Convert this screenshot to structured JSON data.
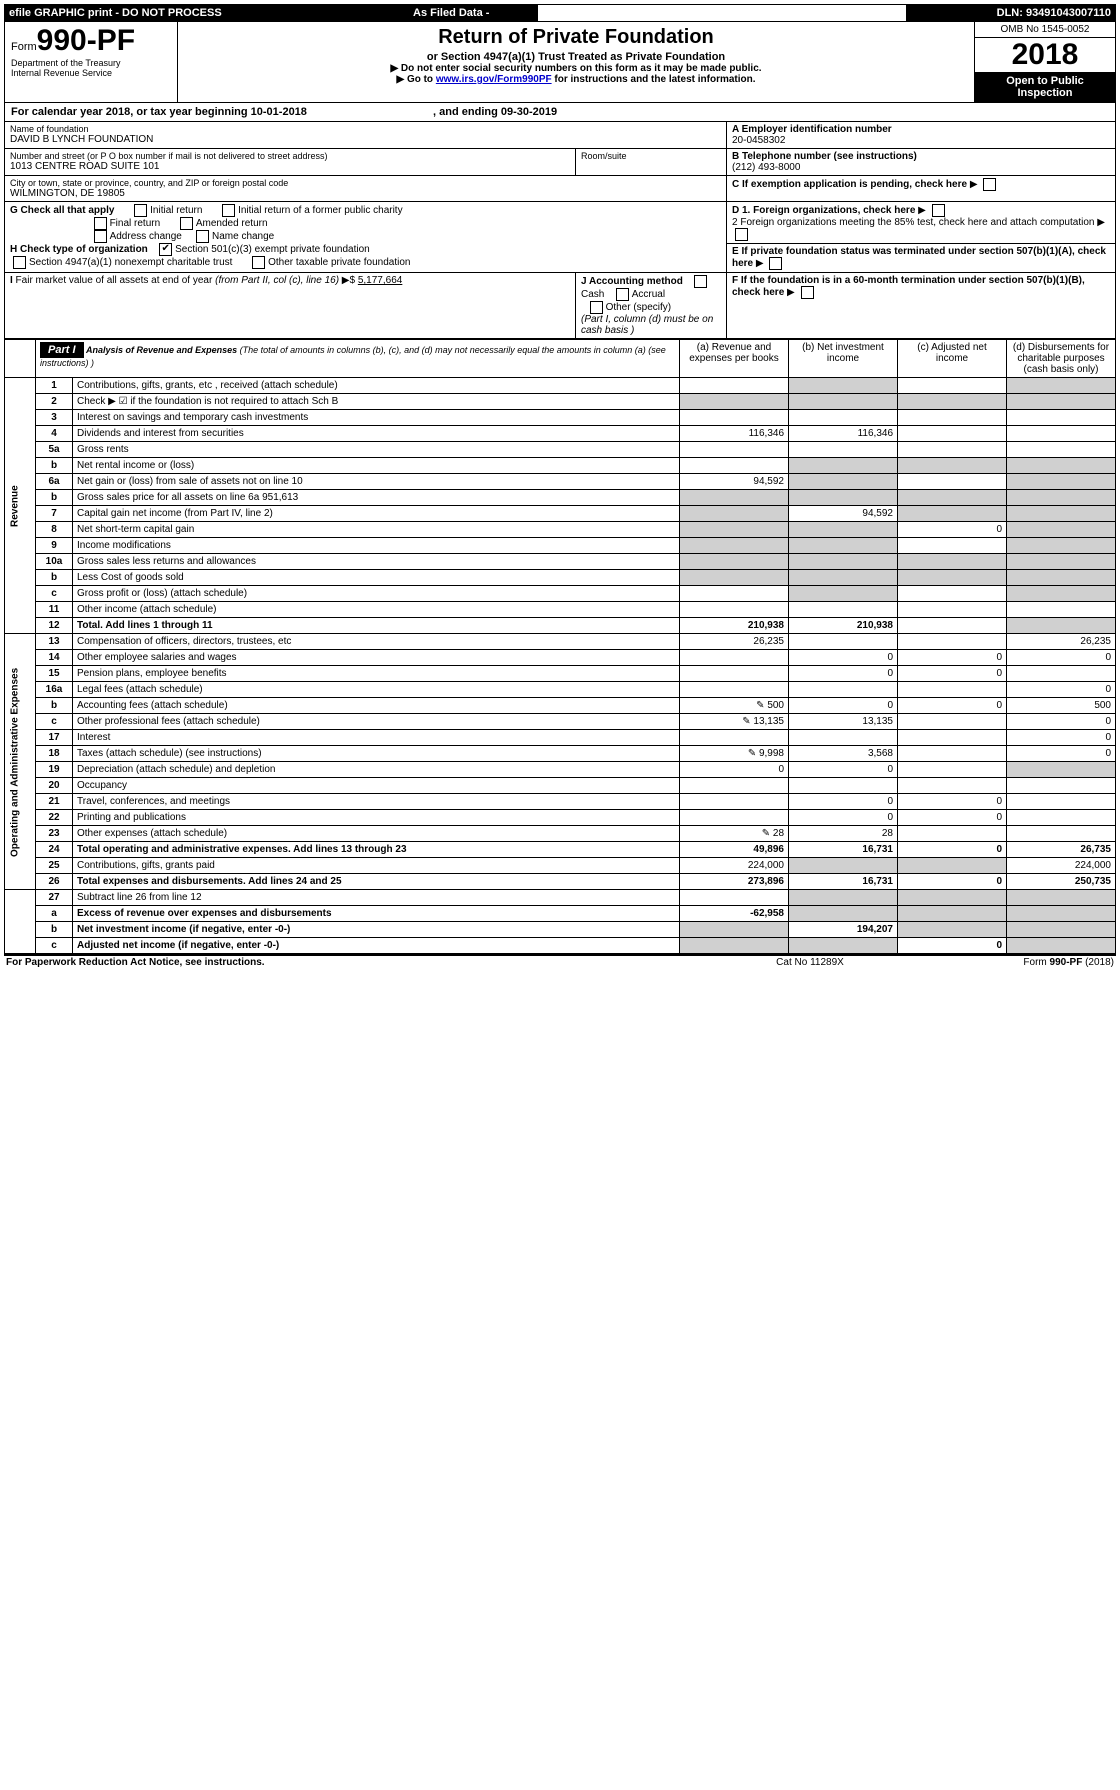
{
  "topbar": {
    "efile": "efile GRAPHIC print - DO NOT PROCESS",
    "asFiled": "As Filed Data -",
    "dln": "DLN: 93491043007110"
  },
  "header": {
    "formPrefix": "Form",
    "formNo": "990-PF",
    "dept1": "Department of the Treasury",
    "dept2": "Internal Revenue Service",
    "title": "Return of Private Foundation",
    "subtitle": "or Section 4947(a)(1) Trust Treated as Private Foundation",
    "note1": "▶ Do not enter social security numbers on this form as it may be made public.",
    "note2a": "▶ Go to ",
    "note2link": "www.irs.gov/Form990PF",
    "note2b": " for instructions and the latest information.",
    "omb": "OMB No 1545-0052",
    "year": "2018",
    "inspect": "Open to Public Inspection"
  },
  "calLine": {
    "a": "For calendar year 2018, or tax year beginning 10-01-2018",
    "b": ", and ending 09-30-2019"
  },
  "info": {
    "nameLabel": "Name of foundation",
    "name": "DAVID B LYNCH FOUNDATION",
    "einLabel": "A Employer identification number",
    "ein": "20-0458302",
    "addrLabel": "Number and street (or P O  box number if mail is not delivered to street address)",
    "addr": "1013 CENTRE ROAD SUITE 101",
    "roomLabel": "Room/suite",
    "telLabel": "B Telephone number (see instructions)",
    "tel": "(212) 493-8000",
    "cityLabel": "City or town, state or province, country, and ZIP or foreign postal code",
    "city": "WILMINGTON, DE  19805",
    "cLabel": "C If exemption application is pending, check here",
    "gLabel": "G Check all that apply",
    "gOpts": [
      "Initial return",
      "Initial return of a former public charity",
      "Final return",
      "Amended return",
      "Address change",
      "Name change"
    ],
    "hLabel": "H Check type of organization",
    "hOpt1": "Section 501(c)(3) exempt private foundation",
    "hOpt2": "Section 4947(a)(1) nonexempt charitable trust",
    "hOpt3": "Other taxable private foundation",
    "iLabel": "I Fair market value of all assets at end of year (from Part II, col  (c), line 16) ▶$ ",
    "iVal": "5,177,664",
    "jLabel": "J Accounting method",
    "jOpts": [
      "Cash",
      "Accrual",
      "Other (specify)"
    ],
    "jNote": "(Part I, column (d) must be on cash basis )",
    "d1": "D 1. Foreign organizations, check here",
    "d2": "2 Foreign organizations meeting the 85% test, check here and attach computation",
    "e": "E  If private foundation status was terminated under section 507(b)(1)(A), check here",
    "f": "F  If the foundation is in a 60-month termination under section 507(b)(1)(B), check here"
  },
  "part1": {
    "label": "Part I",
    "title": "Analysis of Revenue and Expenses",
    "titleNote": " (The total of amounts in columns (b), (c), and (d) may not necessarily equal the amounts in column (a) (see instructions) )",
    "colA": "(a) Revenue and expenses per books",
    "colB": "(b) Net investment income",
    "colC": "(c) Adjusted net income",
    "colD": "(d) Disbursements for charitable purposes (cash basis only)",
    "revLabel": "Revenue",
    "expLabel": "Operating and Administrative Expenses",
    "rows": [
      {
        "n": "1",
        "d": "Contributions, gifts, grants, etc , received (attach schedule)",
        "a": "",
        "b": "",
        "c": "",
        "dd": "",
        "bShade": true,
        "cShade": false,
        "dShade": true
      },
      {
        "n": "2",
        "d": "Check ▶ ☑ if the foundation is not required to attach Sch  B",
        "noCells": true
      },
      {
        "n": "3",
        "d": "Interest on savings and temporary cash investments",
        "a": "",
        "b": "",
        "c": "",
        "dd": ""
      },
      {
        "n": "4",
        "d": "Dividends and interest from securities",
        "a": "116,346",
        "b": "116,346",
        "c": "",
        "dd": ""
      },
      {
        "n": "5a",
        "d": "Gross rents",
        "a": "",
        "b": "",
        "c": "",
        "dd": ""
      },
      {
        "n": "b",
        "d": "Net rental income or (loss)",
        "a": "",
        "b": "",
        "c": "",
        "dd": "",
        "bShade": true,
        "cShade": true,
        "dShade": true,
        "aShade": false
      },
      {
        "n": "6a",
        "d": "Net gain or (loss) from sale of assets not on line 10",
        "a": "94,592",
        "b": "",
        "c": "",
        "dd": "",
        "bShade": true,
        "cShade": false,
        "dShade": true
      },
      {
        "n": "b",
        "d": "Gross sales price for all assets on line 6a      951,613",
        "noCells": true
      },
      {
        "n": "7",
        "d": "Capital gain net income (from Part IV, line 2)",
        "a": "",
        "b": "94,592",
        "c": "",
        "dd": "",
        "aShade": true,
        "cShade": true,
        "dShade": true
      },
      {
        "n": "8",
        "d": "Net short-term capital gain",
        "a": "",
        "b": "",
        "c": "0",
        "dd": "",
        "aShade": true,
        "bShade": true,
        "dShade": true
      },
      {
        "n": "9",
        "d": "Income modifications",
        "a": "",
        "b": "",
        "c": "",
        "dd": "",
        "aShade": true,
        "bShade": true,
        "dShade": true
      },
      {
        "n": "10a",
        "d": "Gross sales less returns and allowances",
        "noCells": true
      },
      {
        "n": "b",
        "d": "Less  Cost of goods sold",
        "noCells": true
      },
      {
        "n": "c",
        "d": "Gross profit or (loss) (attach schedule)",
        "a": "",
        "b": "",
        "c": "",
        "dd": "",
        "bShade": true,
        "dShade": true
      },
      {
        "n": "11",
        "d": "Other income (attach schedule)",
        "a": "",
        "b": "",
        "c": "",
        "dd": ""
      },
      {
        "n": "12",
        "d": "Total. Add lines 1 through 11",
        "a": "210,938",
        "b": "210,938",
        "c": "",
        "dd": "",
        "bold": true,
        "dShade": true
      }
    ],
    "expRows": [
      {
        "n": "13",
        "d": "Compensation of officers, directors, trustees, etc",
        "a": "26,235",
        "b": "",
        "c": "",
        "dd": "26,235"
      },
      {
        "n": "14",
        "d": "Other employee salaries and wages",
        "a": "",
        "b": "0",
        "c": "0",
        "dd": "0"
      },
      {
        "n": "15",
        "d": "Pension plans, employee benefits",
        "a": "",
        "b": "0",
        "c": "0",
        "dd": ""
      },
      {
        "n": "16a",
        "d": "Legal fees (attach schedule)",
        "a": "",
        "b": "",
        "c": "",
        "dd": "0"
      },
      {
        "n": "b",
        "d": "Accounting fees (attach schedule)",
        "a": "500",
        "b": "0",
        "c": "0",
        "dd": "500",
        "icon": true
      },
      {
        "n": "c",
        "d": "Other professional fees (attach schedule)",
        "a": "13,135",
        "b": "13,135",
        "c": "",
        "dd": "0",
        "icon": true
      },
      {
        "n": "17",
        "d": "Interest",
        "a": "",
        "b": "",
        "c": "",
        "dd": "0"
      },
      {
        "n": "18",
        "d": "Taxes (attach schedule) (see instructions)",
        "a": "9,998",
        "b": "3,568",
        "c": "",
        "dd": "0",
        "icon": true
      },
      {
        "n": "19",
        "d": "Depreciation (attach schedule) and depletion",
        "a": "0",
        "b": "0",
        "c": "",
        "dd": "",
        "dShade": true
      },
      {
        "n": "20",
        "d": "Occupancy",
        "a": "",
        "b": "",
        "c": "",
        "dd": ""
      },
      {
        "n": "21",
        "d": "Travel, conferences, and meetings",
        "a": "",
        "b": "0",
        "c": "0",
        "dd": ""
      },
      {
        "n": "22",
        "d": "Printing and publications",
        "a": "",
        "b": "0",
        "c": "0",
        "dd": ""
      },
      {
        "n": "23",
        "d": "Other expenses (attach schedule)",
        "a": "28",
        "b": "28",
        "c": "",
        "dd": "",
        "icon": true
      },
      {
        "n": "24",
        "d": "Total operating and administrative expenses. Add lines 13 through 23",
        "a": "49,896",
        "b": "16,731",
        "c": "0",
        "dd": "26,735",
        "bold": true
      },
      {
        "n": "25",
        "d": "Contributions, gifts, grants paid",
        "a": "224,000",
        "b": "",
        "c": "",
        "dd": "224,000",
        "bShade": true,
        "cShade": true
      },
      {
        "n": "26",
        "d": "Total expenses and disbursements. Add lines 24 and 25",
        "a": "273,896",
        "b": "16,731",
        "c": "0",
        "dd": "250,735",
        "bold": true
      }
    ],
    "rows27": [
      {
        "n": "27",
        "d": "Subtract line 26 from line 12",
        "a": "",
        "b": "",
        "c": "",
        "dd": "",
        "bShade": true,
        "cShade": true,
        "dShade": true
      },
      {
        "n": "a",
        "d": "Excess of revenue over expenses and disbursements",
        "a": "-62,958",
        "b": "",
        "c": "",
        "dd": "",
        "bold": true,
        "bShade": true,
        "cShade": true,
        "dShade": true
      },
      {
        "n": "b",
        "d": "Net investment income (if negative, enter -0-)",
        "a": "",
        "b": "194,207",
        "c": "",
        "dd": "",
        "bold": true,
        "aShade": true,
        "cShade": true,
        "dShade": true
      },
      {
        "n": "c",
        "d": "Adjusted net income (if negative, enter -0-)",
        "a": "",
        "b": "",
        "c": "0",
        "dd": "",
        "bold": true,
        "aShade": true,
        "bShade": true,
        "dShade": true
      }
    ]
  },
  "footer": {
    "left": "For Paperwork Reduction Act Notice, see instructions.",
    "mid": "Cat  No  11289X",
    "right": "Form 990-PF (2018)"
  },
  "colors": {
    "black": "#000000",
    "shade": "#d0d0d0"
  }
}
